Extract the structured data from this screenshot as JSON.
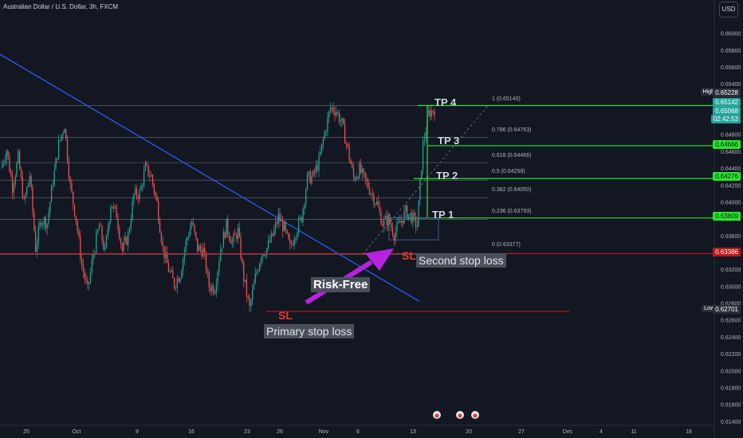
{
  "header": {
    "symbol_label": "Australian Dollar / U.S. Dollar, 3h, FXCM",
    "currency_button": "USD"
  },
  "colors": {
    "background": "#131722",
    "bull": "#26a69a",
    "bear": "#ef5350",
    "tp_line": "#27e827",
    "sl_line": "#b71c1c",
    "trend": "#2962ff",
    "arrow": "#b623e0",
    "fib_line": "#787b86"
  },
  "chart_data": {
    "type": "candlestick",
    "title": "Australian Dollar / U.S. Dollar, 3h, FXCM",
    "ylim": [
      0.6137,
      0.6628
    ],
    "y_ticks": [
      "0.66000",
      "0.65800",
      "0.65600",
      "0.65400",
      "0.65200",
      "0.65000",
      "0.64800",
      "0.64600",
      "0.64400",
      "0.64200",
      "0.64000",
      "0.63800",
      "0.63600",
      "0.63400",
      "0.63200",
      "0.63000",
      "0.62800",
      "0.62600",
      "0.62400",
      "0.62200",
      "0.62000",
      "0.61800",
      "0.61600",
      "0.61400"
    ],
    "x_ticks": [
      "25",
      "Oct",
      "9",
      "16",
      "23",
      "26",
      "Nov",
      "6",
      "13",
      "20",
      "27",
      "Dec",
      "4",
      "11",
      "18"
    ],
    "price_path": [
      0.644,
      0.6462,
      0.6418,
      0.6452,
      0.6398,
      0.6432,
      0.6345,
      0.638,
      0.6375,
      0.6425,
      0.6468,
      0.6492,
      0.6418,
      0.638,
      0.6325,
      0.6295,
      0.6338,
      0.6372,
      0.634,
      0.6398,
      0.6385,
      0.6342,
      0.636,
      0.6408,
      0.641,
      0.644,
      0.643,
      0.6398,
      0.6345,
      0.632,
      0.6302,
      0.6315,
      0.6352,
      0.6376,
      0.6345,
      0.6342,
      0.63,
      0.6298,
      0.6345,
      0.6372,
      0.6352,
      0.6365,
      0.631,
      0.6273,
      0.631,
      0.6338,
      0.6345,
      0.636,
      0.6382,
      0.6368,
      0.6345,
      0.6365,
      0.6382,
      0.6428,
      0.643,
      0.6448,
      0.6482,
      0.6512,
      0.6508,
      0.6492,
      0.6462,
      0.6428,
      0.6438,
      0.6425,
      0.6412,
      0.6398,
      0.6375,
      0.638,
      0.6362,
      0.6375,
      0.6388,
      0.6382,
      0.6372,
      0.6468,
      0.6505,
      0.651
    ],
    "levels": {
      "high": "0.65228",
      "low": "0.62701",
      "current_price": "0.65068",
      "countdown": "02:42:53",
      "tp4": "0.65142",
      "tp3": "0.64666",
      "tp2": "0.64276",
      "tp1": "0.63809",
      "second_sl": "0.63386",
      "primary_sl": "0.62701"
    },
    "fib_levels": [
      {
        "label": "1 (0.65140)",
        "price": 0.6514
      },
      {
        "label": "0.786 (0.64763)",
        "price": 0.64763
      },
      {
        "label": "0.618 (0.64466)",
        "price": 0.64466
      },
      {
        "label": "0.5 (0.64258)",
        "price": 0.64258
      },
      {
        "label": "0.382 (0.64050)",
        "price": 0.6405
      },
      {
        "label": "0.236 (0.63793)",
        "price": 0.63793
      },
      {
        "label": "0 (0.63377)",
        "price": 0.63377
      }
    ],
    "trendline": {
      "from_price": 0.6575,
      "to_price": 0.6282
    },
    "annotations": {
      "tp4": "TP 4",
      "tp3": "TP 3",
      "tp2": "TP 2",
      "tp1": "TP 1",
      "sl_primary": "SL",
      "sl_second": "SL",
      "primary_stop_loss": "Primary stop loss",
      "second_stop_loss": "Second stop loss",
      "risk_free": "Risk-Free"
    },
    "axis_badges": {
      "high": "High",
      "low": "Low"
    }
  }
}
